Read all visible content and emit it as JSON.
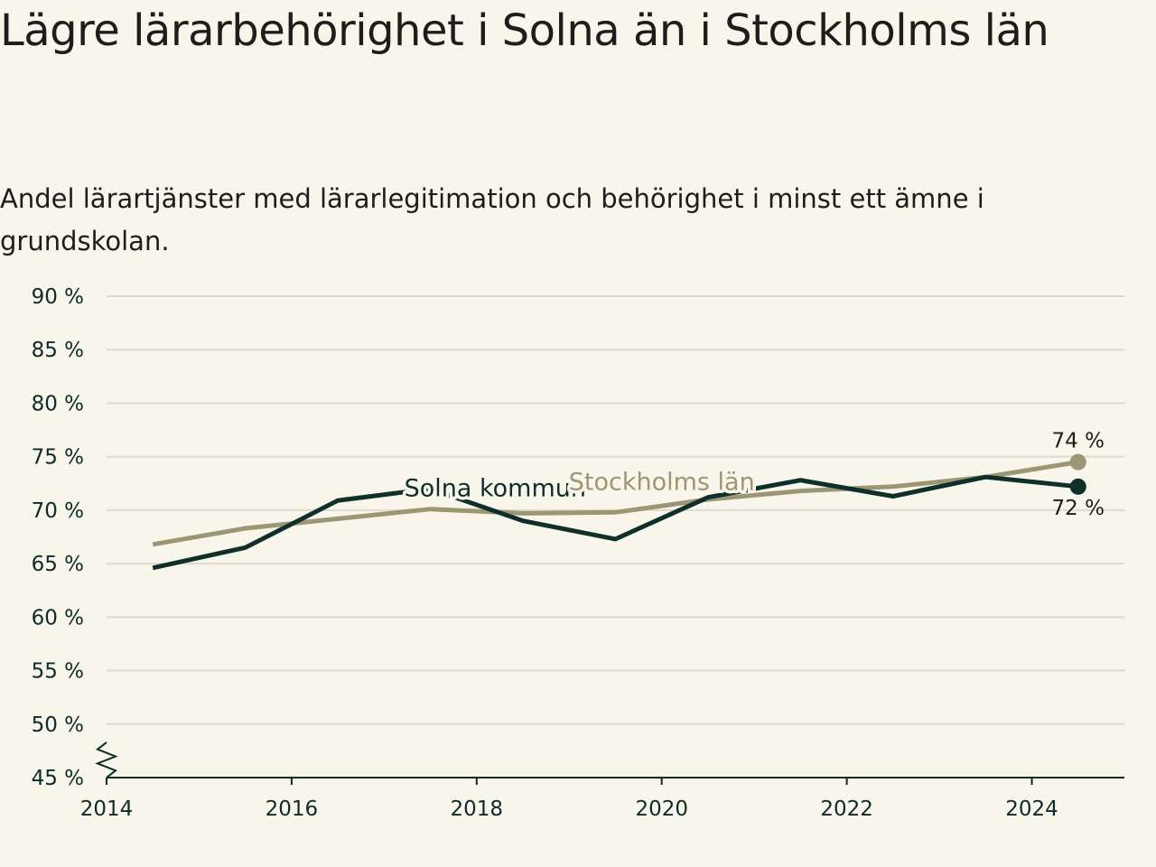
{
  "title": "Lägre lärarbehörighet i Solna än i Stockholms län",
  "subtitle": "Andel lärartjänster med lärarlegitimation och behörighet i minst ett ämne i grundskolan.",
  "colors": {
    "background": "#f8f5ea",
    "solna": "#0f2f2a",
    "stockholm": "#9b9674",
    "grid": "#dedbd0",
    "axis": "#0d2b2a",
    "text": "#1d1d1b"
  },
  "chart_data": {
    "type": "line",
    "title": "Lägre lärarbehörighet i Solna än i Stockholms län",
    "subtitle": "Andel lärartjänster med lärarlegitimation och behörighet i minst ett ämne i grundskolan.",
    "xlabel": "",
    "ylabel": "",
    "xlim": [
      2014,
      2025
    ],
    "ylim": [
      45,
      90
    ],
    "y_axis_break": true,
    "grid": true,
    "x_ticks": [
      {
        "value": 2014,
        "label": "2014"
      },
      {
        "value": 2016,
        "label": "2016"
      },
      {
        "value": 2018,
        "label": "2018"
      },
      {
        "value": 2020,
        "label": "2020"
      },
      {
        "value": 2022,
        "label": "2022"
      },
      {
        "value": 2024,
        "label": "2024"
      }
    ],
    "y_ticks": [
      {
        "value": 45,
        "label": "45 %"
      },
      {
        "value": 50,
        "label": "50 %"
      },
      {
        "value": 55,
        "label": "55 %"
      },
      {
        "value": 60,
        "label": "60 %"
      },
      {
        "value": 65,
        "label": "65 %"
      },
      {
        "value": 70,
        "label": "70 %"
      },
      {
        "value": 75,
        "label": "75 %"
      },
      {
        "value": 80,
        "label": "80 %"
      },
      {
        "value": 85,
        "label": "85 %"
      },
      {
        "value": 90,
        "label": "90 %"
      }
    ],
    "series": [
      {
        "name": "Stockholms län",
        "color": "#9b9674",
        "x": [
          2014.5,
          2015.5,
          2016.5,
          2017.5,
          2018.5,
          2019.5,
          2020.5,
          2021.5,
          2022.5,
          2023.5,
          2024.5
        ],
        "values": [
          66.8,
          68.3,
          69.2,
          70.1,
          69.7,
          69.8,
          71.0,
          71.8,
          72.2,
          73.1,
          74.5
        ],
        "end_label": "74 %"
      },
      {
        "name": "Solna kommun",
        "color": "#0f2f2a",
        "x": [
          2014.5,
          2015.5,
          2016.5,
          2017.5,
          2018.5,
          2019.5,
          2020.5,
          2021.5,
          2022.5,
          2023.5,
          2024.5
        ],
        "values": [
          64.6,
          66.5,
          70.9,
          72.0,
          69.0,
          67.3,
          71.2,
          72.8,
          71.3,
          73.1,
          72.2
        ],
        "end_label": "72 %"
      }
    ],
    "series_labels": [
      {
        "text": "Solna kommun",
        "series": "Solna kommun",
        "x": 2018.2,
        "y": 71.3
      },
      {
        "text": "Stockholms län",
        "series": "Stockholms län",
        "x": 2020.0,
        "y": 71.9
      }
    ]
  }
}
